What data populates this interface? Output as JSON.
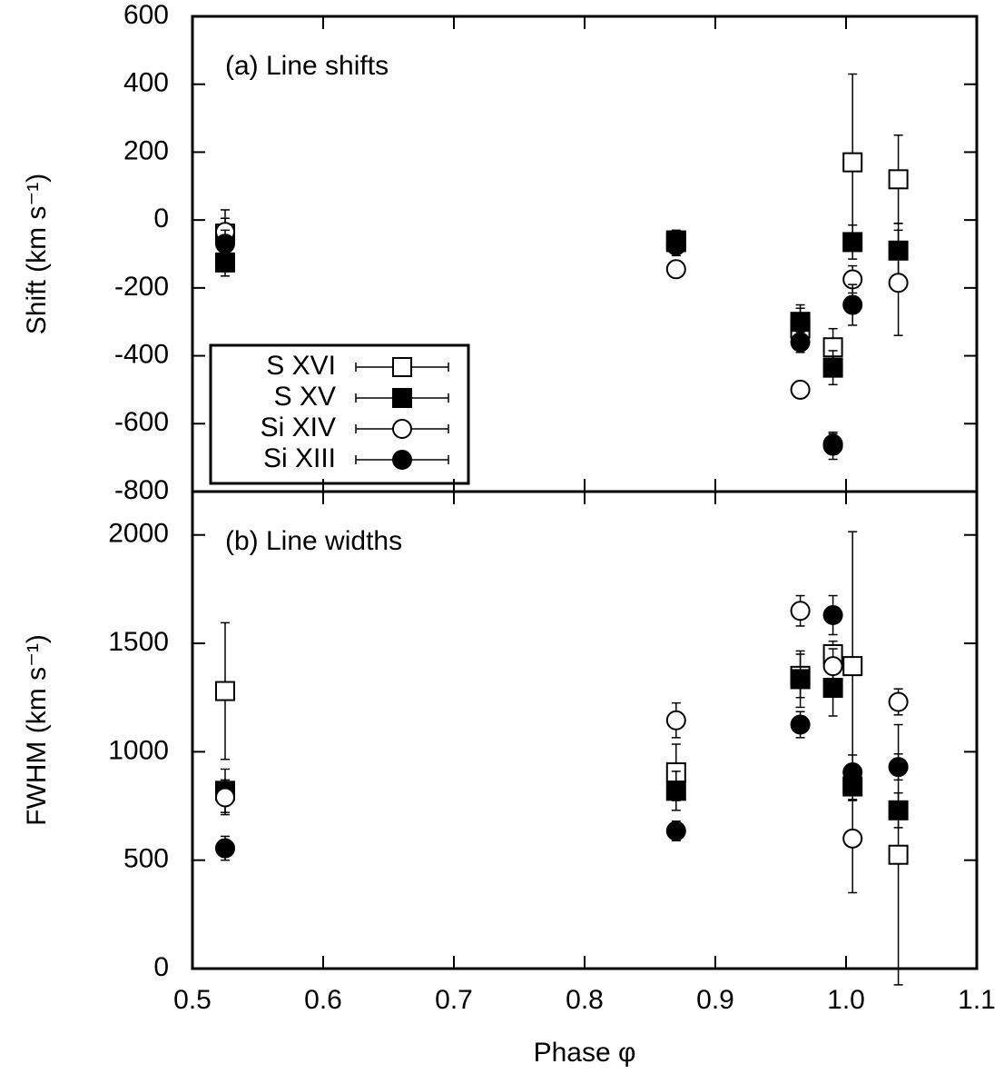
{
  "chart_data": [
    {
      "type": "scatter",
      "annotation": "(a) Line shifts",
      "ylabel": "Shift (km s⁻¹)",
      "x": [
        0.525,
        0.87,
        0.965,
        0.99,
        1.005,
        1.04
      ],
      "xlim": [
        0.5,
        1.1
      ],
      "ylim": [
        -800,
        600
      ],
      "yticks": [
        -800,
        -600,
        -400,
        -200,
        0,
        200,
        400,
        600
      ],
      "legend": "lower left",
      "series": [
        {
          "name": "S XVI",
          "color": "#000000",
          "marker": "square",
          "filled": false,
          "values": [
            -40,
            -60,
            -320,
            -375,
            170,
            120
          ],
          "errors": [
            70,
            30,
            60,
            55,
            260,
            130
          ]
        },
        {
          "name": "S XV",
          "color": "#000000",
          "marker": "square",
          "filled": true,
          "values": [
            -125,
            -65,
            -300,
            -435,
            -65,
            -90
          ],
          "errors": [
            40,
            30,
            50,
            50,
            50,
            80
          ]
        },
        {
          "name": "Si XIV",
          "color": "#000000",
          "marker": "circle",
          "filled": false,
          "values": [
            -35,
            -145,
            -500,
            -660,
            -175,
            -185
          ],
          "errors": [
            40,
            20,
            25,
            30,
            40,
            155
          ]
        },
        {
          "name": "Si XIII",
          "color": "#000000",
          "marker": "circle",
          "filled": true,
          "values": [
            -70,
            -75,
            -360,
            -665,
            -250,
            null
          ],
          "errors": [
            40,
            30,
            30,
            40,
            60,
            null
          ]
        }
      ]
    },
    {
      "type": "scatter",
      "annotation": "(b) Line widths",
      "ylabel": "FWHM (km s⁻¹)",
      "xlabel": "Phase φ",
      "x": [
        0.525,
        0.87,
        0.965,
        0.99,
        1.005,
        1.04
      ],
      "xlim": [
        0.5,
        1.1
      ],
      "ylim": [
        0,
        2200
      ],
      "xticks": [
        0.5,
        0.6,
        0.7,
        0.8,
        0.9,
        {
          "value": 1,
          "label": "1.0"
        },
        1.1
      ],
      "yticks": [
        0,
        500,
        1000,
        1500,
        2000
      ],
      "series": [
        {
          "name": "S XVI",
          "color": "#000000",
          "marker": "square",
          "filled": false,
          "values": [
            1280,
            905,
            1350,
            1450,
            1395,
            525
          ],
          "errors": [
            315,
            130,
            100,
            60,
            620,
            600
          ]
        },
        {
          "name": "S XV",
          "color": "#000000",
          "marker": "square",
          "filled": true,
          "values": [
            820,
            820,
            1335,
            1295,
            840,
            730
          ],
          "errors": [
            100,
            90,
            130,
            130,
            60,
            80
          ]
        },
        {
          "name": "Si XIV",
          "color": "#000000",
          "marker": "circle",
          "filled": false,
          "values": [
            790,
            1145,
            1650,
            1395,
            600,
            1230
          ],
          "errors": [
            80,
            80,
            70,
            80,
            250,
            60
          ]
        },
        {
          "name": "Si XIII",
          "color": "#000000",
          "marker": "circle",
          "filled": true,
          "values": [
            555,
            635,
            1125,
            1630,
            905,
            930
          ],
          "errors": [
            55,
            45,
            60,
            90,
            80,
            60
          ]
        }
      ]
    }
  ]
}
